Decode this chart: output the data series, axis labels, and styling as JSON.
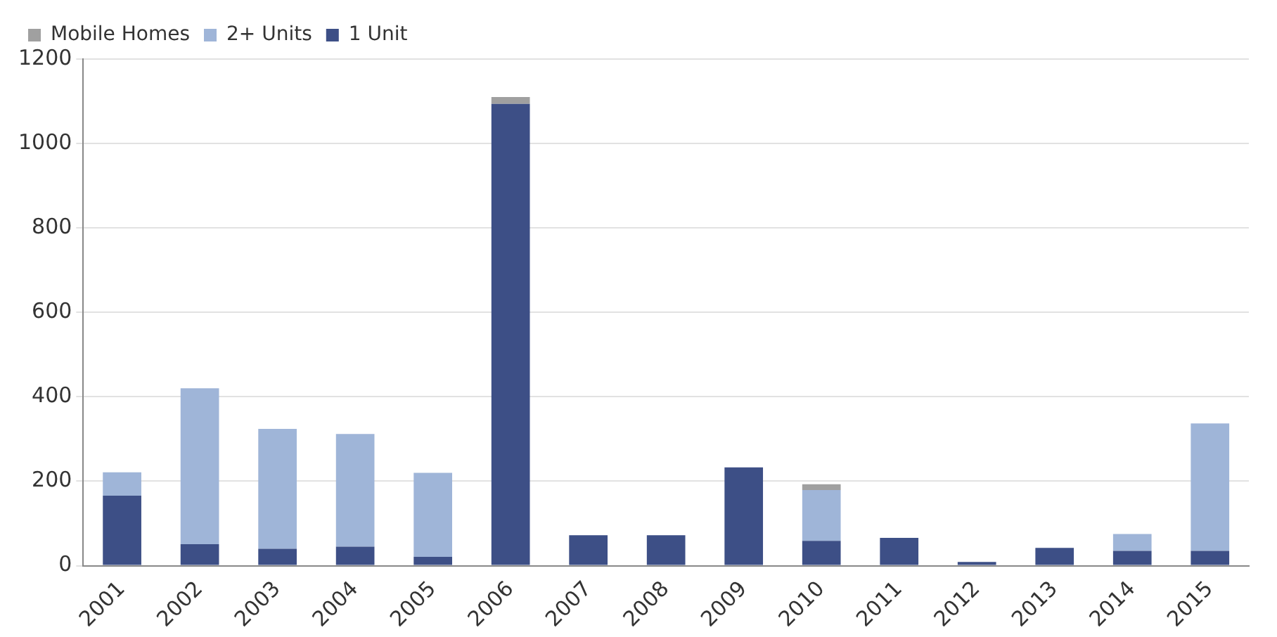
{
  "chart_data": {
    "type": "bar",
    "stacked": true,
    "categories": [
      "2001",
      "2002",
      "2003",
      "2004",
      "2005",
      "2006",
      "2007",
      "2008",
      "2009",
      "2010",
      "2011",
      "2012",
      "2013",
      "2014",
      "2015"
    ],
    "series": [
      {
        "name": "1 Unit",
        "color": "#3d4f86",
        "values": [
          166,
          51,
          40,
          45,
          21,
          1094,
          72,
          72,
          233,
          59,
          66,
          9,
          42,
          35,
          35
        ]
      },
      {
        "name": "2+ Units",
        "color": "#9fb5d8",
        "values": [
          55,
          369,
          284,
          267,
          199,
          0,
          0,
          0,
          0,
          120,
          0,
          0,
          0,
          40,
          302
        ]
      },
      {
        "name": "Mobile Homes",
        "color": "#a0a0a0",
        "values": [
          0,
          0,
          0,
          0,
          0,
          16,
          0,
          0,
          0,
          14,
          0,
          0,
          0,
          0,
          0
        ]
      }
    ],
    "ylim": [
      0,
      1200
    ],
    "yticks": [
      0,
      200,
      400,
      600,
      800,
      1000,
      1200
    ],
    "grid": "y",
    "legend": "top left"
  }
}
